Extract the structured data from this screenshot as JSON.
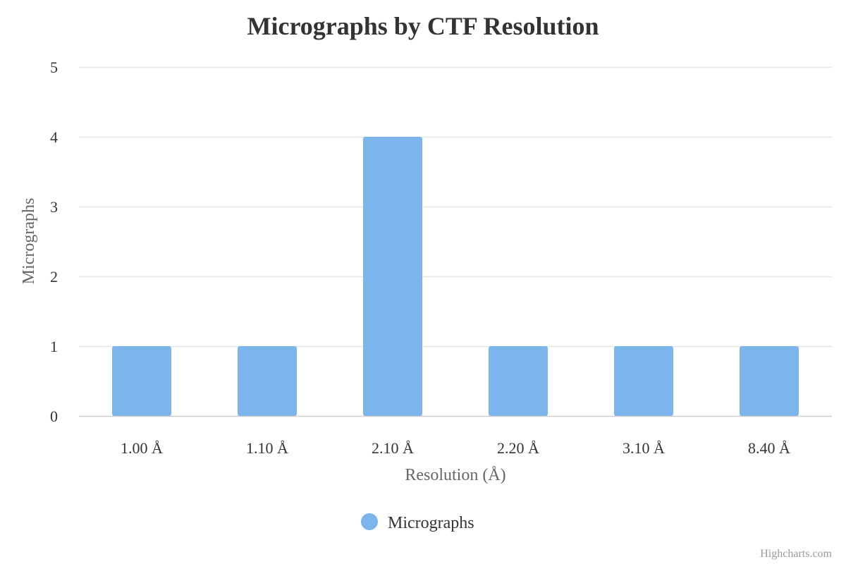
{
  "chart_data": {
    "type": "bar",
    "title": "Micrographs by CTF Resolution",
    "xlabel": "Resolution (Å)",
    "ylabel": "Micrographs",
    "categories": [
      "1.00 Å",
      "1.10 Å",
      "2.10 Å",
      "2.20 Å",
      "3.10 Å",
      "8.40 Å"
    ],
    "series": [
      {
        "name": "Micrographs",
        "values": [
          1,
          1,
          4,
          1,
          1,
          1
        ]
      }
    ],
    "ylim": [
      0,
      5
    ],
    "yticks": [
      "0",
      "1",
      "2",
      "3",
      "4",
      "5"
    ],
    "grid": true,
    "legend_position": "bottom-center",
    "colors": {
      "bar": "#7cb5ec",
      "grid": "#e6e6e6",
      "axis": "#cccccc"
    }
  },
  "credits": "Highcharts.com"
}
